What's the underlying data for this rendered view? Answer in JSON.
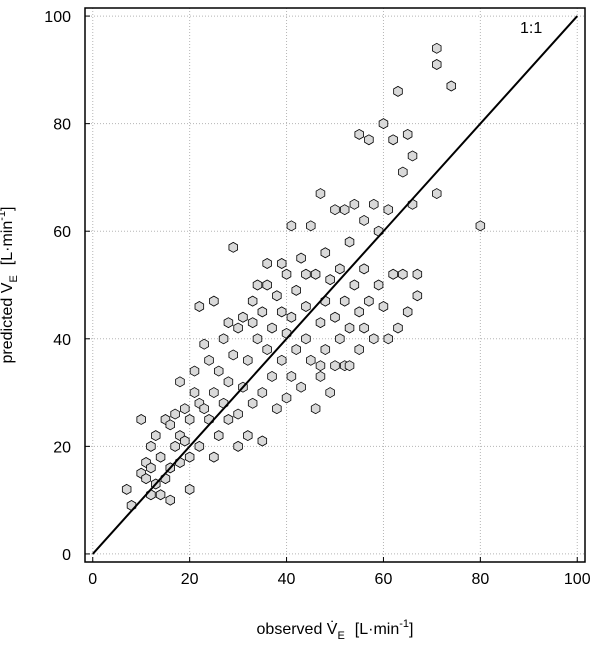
{
  "chart_data": {
    "type": "scatter",
    "annotation": "1:1",
    "xlabel": {
      "main": "observed V̇",
      "sub": "E",
      "unit": "[L·min",
      "sup": "-1",
      "close": "]"
    },
    "ylabel": {
      "main": "predicted V̇",
      "sub": "E",
      "unit": "[L·min",
      "sup": "-1",
      "close": "]"
    },
    "xlim": [
      -1.6,
      101.6
    ],
    "ylim": [
      -1.5,
      101.5
    ],
    "xticks": [
      0,
      20,
      40,
      60,
      80,
      100
    ],
    "yticks": [
      0,
      20,
      40,
      60,
      80,
      100
    ],
    "grid": true,
    "identity_line": {
      "x": [
        0,
        100
      ],
      "y": [
        0,
        100
      ],
      "color": "#000000"
    },
    "series": [
      {
        "name": "data",
        "color": "#d9d9d9",
        "x": [
          7,
          8,
          10,
          10,
          11,
          11,
          12,
          12,
          13,
          13,
          14,
          14,
          15,
          15,
          16,
          16,
          17,
          17,
          18,
          18,
          19,
          19,
          20,
          20,
          20,
          21,
          21,
          22,
          22,
          22,
          23,
          23,
          24,
          24,
          25,
          25,
          26,
          26,
          27,
          27,
          28,
          28,
          29,
          29,
          30,
          30,
          30,
          31,
          31,
          32,
          32,
          33,
          33,
          34,
          34,
          35,
          35,
          35,
          36,
          36,
          37,
          37,
          38,
          38,
          39,
          39,
          40,
          40,
          40,
          41,
          41,
          41,
          42,
          42,
          43,
          43,
          44,
          44,
          45,
          45,
          46,
          46,
          47,
          47,
          47,
          48,
          48,
          48,
          49,
          49,
          50,
          50,
          50,
          51,
          51,
          52,
          52,
          52,
          53,
          53,
          54,
          54,
          55,
          55,
          55,
          56,
          56,
          56,
          57,
          57,
          58,
          58,
          59,
          59,
          60,
          60,
          61,
          61,
          62,
          62,
          63,
          63,
          64,
          64,
          65,
          65,
          66,
          66,
          67,
          67,
          71,
          71,
          71,
          74,
          80,
          18,
          25,
          33,
          44,
          39,
          53,
          47,
          36,
          28,
          16,
          12
        ],
        "y": [
          12,
          9,
          15,
          25,
          17,
          14,
          16,
          20,
          22,
          13,
          18,
          11,
          25,
          14,
          24,
          10,
          20,
          26,
          22,
          17,
          21,
          27,
          25,
          18,
          12,
          30,
          34,
          46,
          28,
          20,
          27,
          39,
          36,
          25,
          18,
          30,
          34,
          22,
          40,
          28,
          43,
          32,
          57,
          37,
          42,
          26,
          20,
          44,
          31,
          36,
          22,
          47,
          28,
          50,
          40,
          45,
          30,
          21,
          54,
          38,
          42,
          33,
          48,
          27,
          45,
          36,
          52,
          41,
          29,
          61,
          44,
          33,
          49,
          38,
          55,
          31,
          46,
          40,
          61,
          36,
          52,
          27,
          67,
          43,
          33,
          56,
          47,
          38,
          51,
          30,
          64,
          44,
          35,
          53,
          40,
          64,
          47,
          35,
          58,
          42,
          65,
          50,
          78,
          45,
          38,
          62,
          53,
          42,
          77,
          47,
          65,
          40,
          60,
          50,
          80,
          46,
          64,
          40,
          77,
          52,
          86,
          42,
          71,
          52,
          78,
          45,
          74,
          65,
          48,
          52,
          67,
          94,
          91,
          87,
          61,
          32,
          47,
          43,
          52,
          54,
          35,
          35,
          50,
          25,
          16,
          11
        ]
      }
    ]
  }
}
